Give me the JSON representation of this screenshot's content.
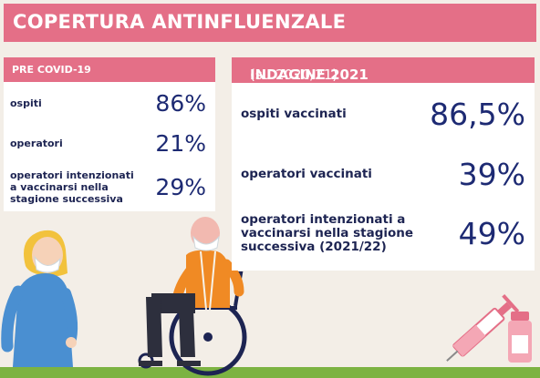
{
  "header": {
    "title": "COPERTURA ANTINFLUENZALE"
  },
  "pre_covid": {
    "heading": "PRE COVID-19",
    "rows": [
      {
        "label": "ospiti",
        "value": "86%"
      },
      {
        "label": "operatori",
        "value": "21%"
      },
      {
        "label_lines": [
          "operatori intenzionati",
          "a vaccinarsi nella",
          "stagione successiva"
        ],
        "value": "29%"
      }
    ]
  },
  "indagine": {
    "heading": "INDAGINE 2021",
    "heading_sub": "(su 2020/21)",
    "rows": [
      {
        "label": "ospiti vaccinati",
        "value": "86,5%"
      },
      {
        "label": "operatori vaccinati",
        "value": "39%"
      },
      {
        "label_lines": [
          "operatori intenzionati a",
          "vaccinarsi nella stagione",
          "successiva (2021/22)"
        ],
        "value": "49%"
      }
    ]
  },
  "colors": {
    "accent_pink": "#e46f87",
    "number_navy": "#1d2a73",
    "background": "#f3eee7",
    "ground_green": "#7cb342"
  },
  "illustrations": [
    "nurse-figure",
    "wheelchair-person-figure",
    "syringe-icon",
    "vaccine-vial-icon"
  ]
}
